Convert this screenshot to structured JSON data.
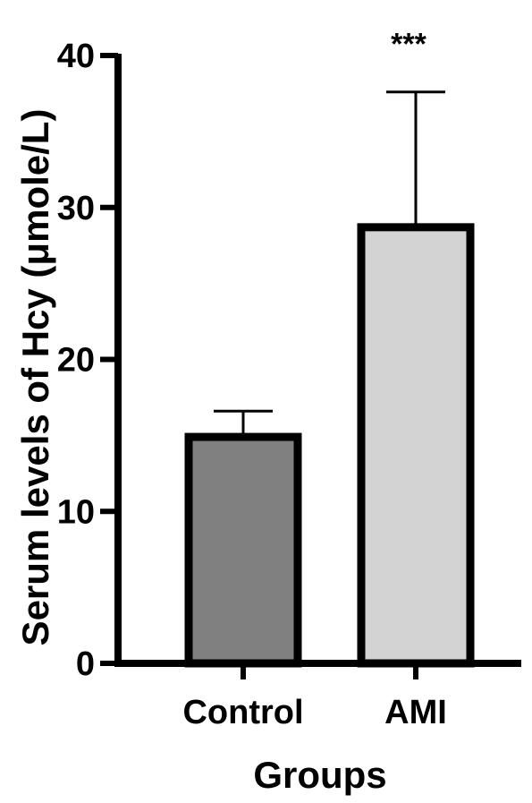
{
  "chart_data": {
    "type": "bar",
    "title": "",
    "xlabel": "Groups",
    "ylabel": "Serum levels of Hcy (μmole/L)",
    "ylim": [
      0,
      40
    ],
    "yticks": [
      "0",
      "10",
      "20",
      "30",
      "40"
    ],
    "categories": [
      "Control",
      "AMI"
    ],
    "values": [
      14.9,
      28.7
    ],
    "error_upper": [
      16.6,
      37.6
    ],
    "bar_colors": [
      "#808080",
      "#d3d3d3"
    ],
    "annotations": [
      {
        "category": "AMI",
        "text": "***"
      }
    ],
    "grid": false
  }
}
